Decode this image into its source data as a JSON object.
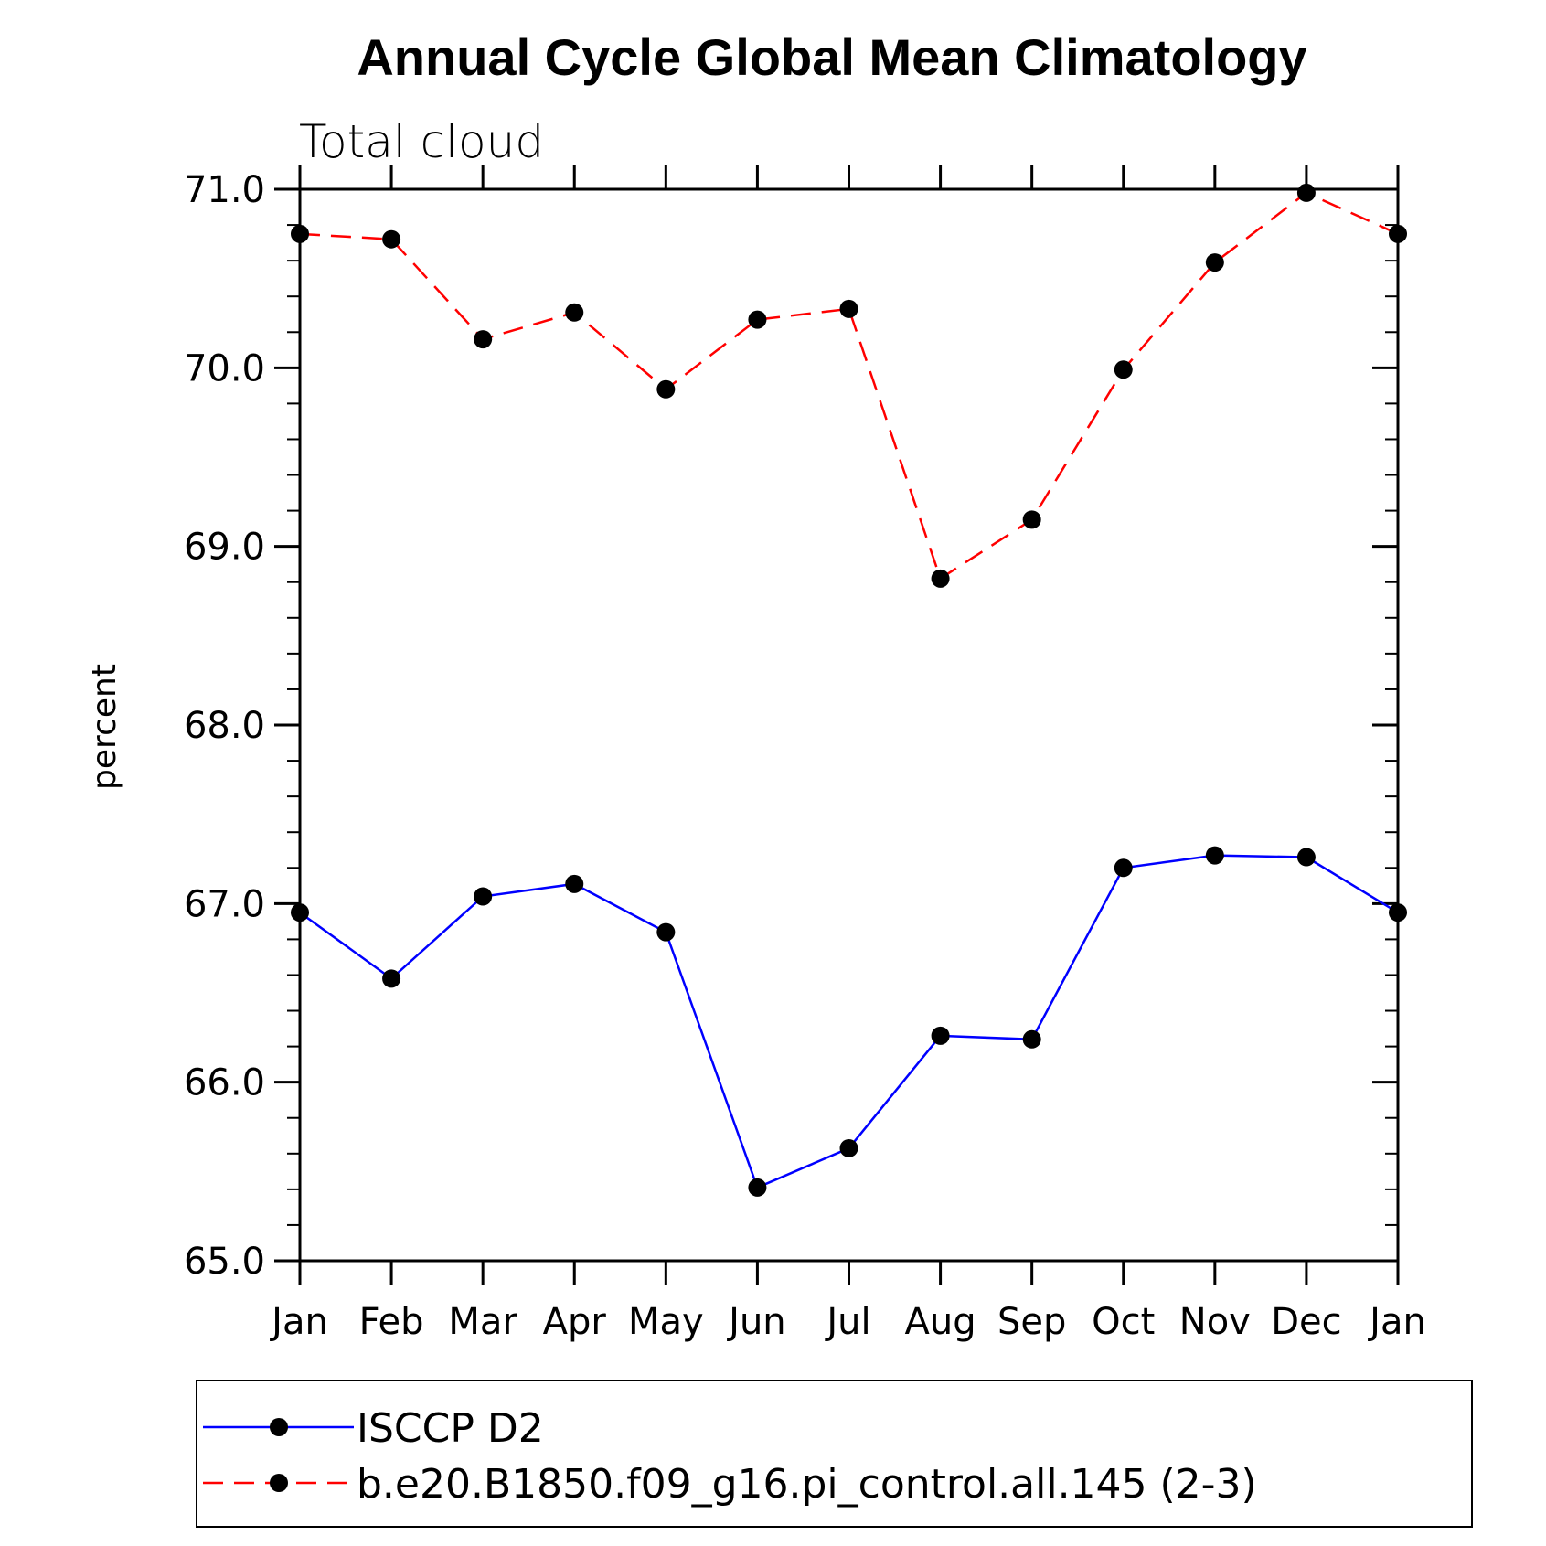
{
  "chart_data": {
    "type": "line",
    "title": "Annual Cycle Global Mean Climatology",
    "subtitle": "Total cloud",
    "xlabel": "",
    "ylabel": "percent",
    "categories": [
      "Jan",
      "Feb",
      "Mar",
      "Apr",
      "May",
      "Jun",
      "Jul",
      "Aug",
      "Sep",
      "Oct",
      "Nov",
      "Dec",
      "Jan"
    ],
    "ylim": [
      65.0,
      71.0
    ],
    "yticks": [
      "65.0",
      "66.0",
      "67.0",
      "68.0",
      "69.0",
      "70.0",
      "71.0"
    ],
    "grid": false,
    "legend_position": "bottom",
    "series": [
      {
        "name": "ISCCP D2",
        "color": "#0000ff",
        "line_style": "solid",
        "marker": "filled-circle",
        "values": [
          66.95,
          66.58,
          67.04,
          67.11,
          66.84,
          65.41,
          65.63,
          66.26,
          66.24,
          67.2,
          67.27,
          67.26,
          66.95
        ]
      },
      {
        "name": "b.e20.B1850.f09_g16.pi_control.all.145 (2-3)",
        "color": "#ff0000",
        "line_style": "dashed",
        "marker": "filled-circle",
        "values": [
          70.75,
          70.72,
          70.16,
          70.31,
          69.88,
          70.27,
          70.33,
          68.82,
          69.15,
          69.99,
          70.59,
          70.98,
          70.75
        ]
      }
    ]
  }
}
